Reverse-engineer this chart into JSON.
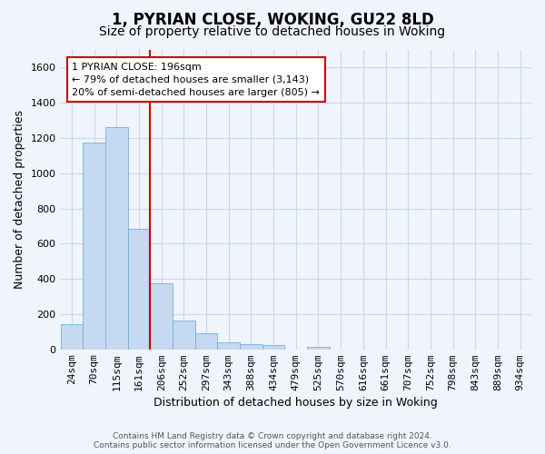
{
  "title1": "1, PYRIAN CLOSE, WOKING, GU22 8LD",
  "title2": "Size of property relative to detached houses in Woking",
  "xlabel": "Distribution of detached houses by size in Woking",
  "ylabel": "Number of detached properties",
  "categories": [
    "24sqm",
    "70sqm",
    "115sqm",
    "161sqm",
    "206sqm",
    "252sqm",
    "297sqm",
    "343sqm",
    "388sqm",
    "434sqm",
    "479sqm",
    "525sqm",
    "570sqm",
    "616sqm",
    "661sqm",
    "707sqm",
    "752sqm",
    "798sqm",
    "843sqm",
    "889sqm",
    "934sqm"
  ],
  "values": [
    145,
    1175,
    1260,
    685,
    375,
    165,
    90,
    38,
    28,
    22,
    0,
    15,
    0,
    0,
    0,
    0,
    0,
    0,
    0,
    0,
    0
  ],
  "bar_color": "#c5d9f0",
  "bar_edge_color": "#7aaed6",
  "red_line_color": "#cc0000",
  "red_line_x": 3.5,
  "ylim": [
    0,
    1700
  ],
  "yticks": [
    0,
    200,
    400,
    600,
    800,
    1000,
    1200,
    1400,
    1600
  ],
  "annotation_line1": "1 PYRIAN CLOSE: 196sqm",
  "annotation_line2": "← 79% of detached houses are smaller (3,143)",
  "annotation_line3": "20% of semi-detached houses are larger (805) →",
  "annotation_box_facecolor": "#ffffff",
  "annotation_box_edgecolor": "#cc0000",
  "background_color": "#f0f4fc",
  "grid_color": "#c8d8ee",
  "title_fontsize": 12,
  "subtitle_fontsize": 10,
  "axis_label_fontsize": 9,
  "tick_fontsize": 8,
  "annotation_fontsize": 8,
  "footnote": "Contains HM Land Registry data © Crown copyright and database right 2024.\nContains public sector information licensed under the Open Government Licence v3.0.",
  "footnote_fontsize": 6.5
}
